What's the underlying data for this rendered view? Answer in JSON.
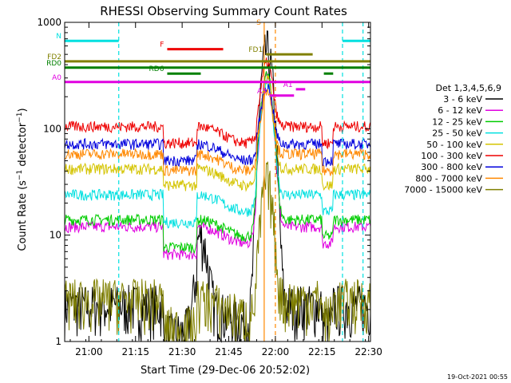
{
  "chart_data": {
    "type": "line",
    "title": "RHESSI Observing Summary Count Rates",
    "xlabel": "Start Time (29-Dec-06 20:52:02)",
    "ylabel_main": "Count Rate (s",
    "ylabel_sup1": "−1",
    "ylabel_mid": " detector",
    "ylabel_sup2": "−1",
    "ylabel_end": ")",
    "yscale": "log",
    "ylim": [
      1,
      1000
    ],
    "xlim_minutes": [
      20.87,
      22.51
    ],
    "x_ticks": [
      {
        "t": 21.0,
        "label": "21:00"
      },
      {
        "t": 21.25,
        "label": "21:15"
      },
      {
        "t": 21.5,
        "label": "21:30"
      },
      {
        "t": 21.75,
        "label": "21:45"
      },
      {
        "t": 22.0,
        "label": "22:00"
      },
      {
        "t": 22.25,
        "label": "22:15"
      },
      {
        "t": 22.5,
        "label": "22:30"
      }
    ],
    "y_ticks": [
      {
        "v": 1,
        "label": "1"
      },
      {
        "v": 10,
        "label": "10"
      },
      {
        "v": 100,
        "label": "100"
      },
      {
        "v": 1000,
        "label": "1000"
      }
    ],
    "legend_title": "Det 1,3,4,5,6,9",
    "legend_position": "right",
    "series": [
      {
        "name": "3 - 6 keV",
        "color": "#000000",
        "base": 2.2
      },
      {
        "name": "6 - 12 keV",
        "color": "#e000e0",
        "base": 12
      },
      {
        "name": "12 - 25 keV",
        "color": "#00cc00",
        "base": 14
      },
      {
        "name": "25 - 50 keV",
        "color": "#00e0e0",
        "base": 24
      },
      {
        "name": "50 - 100 keV",
        "color": "#d4c400",
        "base": 42
      },
      {
        "name": "100 - 300 keV",
        "color": "#ee0000",
        "base": 105
      },
      {
        "name": "300 - 800 keV",
        "color": "#0000dd",
        "base": 72
      },
      {
        "name": "800 - 7000 keV",
        "color": "#ff8800",
        "base": 58
      },
      {
        "name": "7000 - 15000 keV",
        "color": "#808000",
        "base": 2.5
      }
    ],
    "flag_bars": [
      {
        "label": "N",
        "color": "#00e0e0",
        "y": 670,
        "segments": [
          [
            20.87,
            21.16
          ],
          [
            22.36,
            22.51
          ]
        ]
      },
      {
        "label": "F",
        "color": "#ee0000",
        "y": 560,
        "segments": [
          [
            21.42,
            21.72
          ]
        ]
      },
      {
        "label": "S",
        "color": "#ff8800",
        "y": 900,
        "segments": []
      },
      {
        "label": "FD1",
        "color": "#808000",
        "y": 500,
        "segments": [
          [
            21.95,
            22.2
          ]
        ]
      },
      {
        "label": "FD2",
        "color": "#808000",
        "y": 430,
        "segments": [
          [
            20.87,
            22.51
          ]
        ]
      },
      {
        "label": "RD0",
        "color": "#008000",
        "y": 375,
        "segments": [
          [
            20.87,
            22.51
          ]
        ]
      },
      {
        "label": "RD6",
        "color": "#008000",
        "y": 330,
        "segments": [
          [
            21.42,
            21.6
          ],
          [
            22.26,
            22.31
          ]
        ]
      },
      {
        "label": "A0",
        "color": "#e000e0",
        "y": 275,
        "segments": [
          [
            20.87,
            22.51
          ]
        ]
      },
      {
        "label": "A1",
        "color": "#e000e0",
        "y": 235,
        "segments": [
          [
            22.11,
            22.16
          ]
        ]
      },
      {
        "label": "A3",
        "color": "#e000e0",
        "y": 205,
        "segments": [
          [
            21.97,
            22.1
          ]
        ]
      }
    ],
    "vertical_lines": [
      {
        "t": 21.16,
        "color": "#00e0e0",
        "style": "dashed"
      },
      {
        "t": 22.36,
        "color": "#00e0e0",
        "style": "dashed"
      },
      {
        "t": 22.47,
        "color": "#00e0e0",
        "style": "dashed"
      },
      {
        "t": 21.94,
        "color": "#ff8800",
        "style": "solid"
      },
      {
        "t": 22.0,
        "color": "#ff8800",
        "style": "dashed"
      }
    ],
    "timestamp": "19-Oct-2021 00:55"
  }
}
